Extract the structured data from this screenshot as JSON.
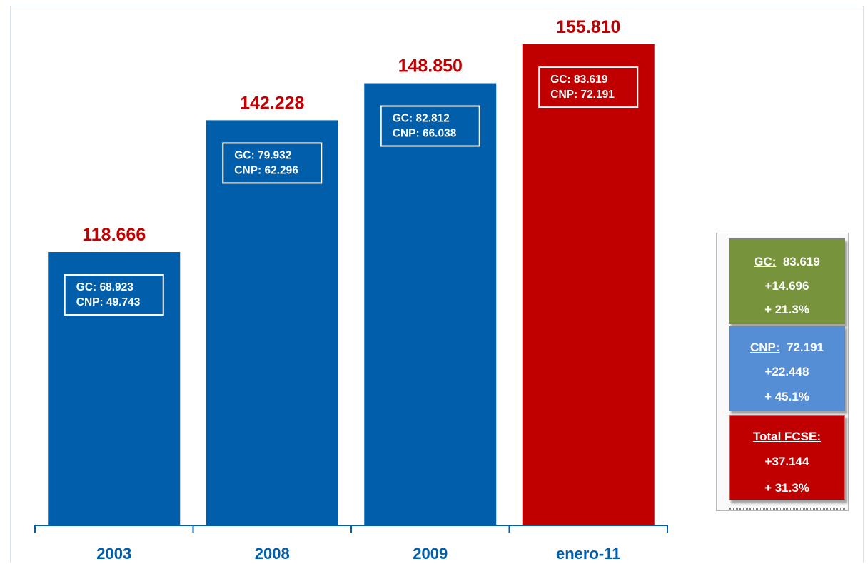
{
  "chart_data": {
    "type": "bar",
    "categories": [
      "2003",
      "2008",
      "2009",
      "enero-11"
    ],
    "values": [
      118.666,
      142.228,
      148.85,
      155.81
    ],
    "value_labels": [
      "118.666",
      "142.228",
      "148.850",
      "155.810"
    ],
    "breakdown": [
      {
        "gc_label": "GC:",
        "gc_value": "68.923",
        "cnp_label": "CNP:",
        "cnp_value": "49.743"
      },
      {
        "gc_label": "GC:",
        "gc_value": "79.932",
        "cnp_label": "CNP:",
        "cnp_value": "62.296"
      },
      {
        "gc_label": "GC:",
        "gc_value": "82.812",
        "cnp_label": "CNP:",
        "cnp_value": "66.038"
      },
      {
        "gc_label": "GC:",
        "gc_value": "83.619",
        "cnp_label": "CNP:",
        "cnp_value": "72.191"
      }
    ],
    "bar_colors": [
      "#005eab",
      "#005eab",
      "#005eab",
      "#c00000"
    ],
    "value_label_color": "#c00000",
    "category_label_color": "#005eab",
    "grid": false,
    "legend": "none"
  },
  "summary": {
    "gc": {
      "label": "GC:",
      "value": "83.619",
      "change": "+14.696",
      "percent": "+ 21.3%",
      "color": "#77933c"
    },
    "cnp": {
      "label": "CNP:",
      "value": "72.191",
      "change": "+22.448",
      "percent": "+ 45.1%",
      "color": "#558ed5"
    },
    "total": {
      "label": "Total FCSE:",
      "change": "+37.144",
      "percent": "+ 31.3%",
      "color": "#c00000"
    }
  }
}
